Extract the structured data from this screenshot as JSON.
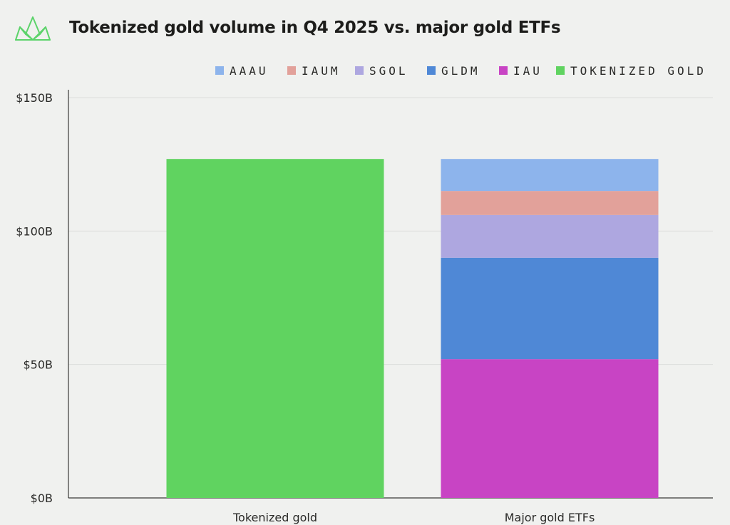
{
  "header": {
    "title": "Tokenized gold volume in Q4 2025 vs. major gold ETFs",
    "logo_icon": "crown-logo-icon"
  },
  "chart_data": {
    "type": "bar",
    "stacked": true,
    "title": "Tokenized gold volume in Q4 2025 vs. major gold ETFs",
    "xlabel": "",
    "ylabel": "",
    "categories": [
      "Tokenized gold",
      "Major gold ETFs"
    ],
    "ylim": [
      0,
      150
    ],
    "y_ticks": [
      0,
      50,
      100,
      150
    ],
    "y_tick_labels": [
      "$0B",
      "$50B",
      "$100B",
      "$150B"
    ],
    "grid": true,
    "legend_position": "top-right",
    "series": [
      {
        "name": "IAU",
        "color": "#c844c4",
        "values": [
          0,
          52
        ]
      },
      {
        "name": "GLDM",
        "color": "#4f88d6",
        "values": [
          0,
          38
        ]
      },
      {
        "name": "SGOL",
        "color": "#aea7e0",
        "values": [
          0,
          16
        ]
      },
      {
        "name": "IAUM",
        "color": "#e2a19a",
        "values": [
          0,
          9
        ]
      },
      {
        "name": "AAAU",
        "color": "#8db4ec",
        "values": [
          0,
          12
        ]
      },
      {
        "name": "TOKENIZED GOLD",
        "color": "#60d360",
        "values": [
          127,
          0
        ]
      }
    ],
    "legend_order": [
      "AAAU",
      "IAUM",
      "SGOL",
      "GLDM",
      "IAU",
      "TOKENIZED GOLD"
    ]
  }
}
